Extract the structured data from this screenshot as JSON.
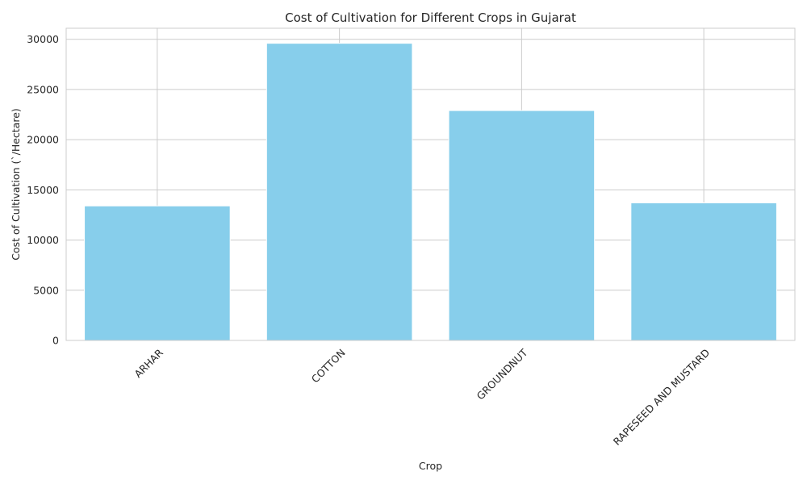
{
  "chart_data": {
    "type": "bar",
    "title": "Cost of Cultivation for Different Crops in Gujarat",
    "xlabel": "Crop",
    "ylabel": "Cost of Cultivation (`/Hectare)",
    "categories": [
      "ARHAR",
      "COTTON",
      "GROUNDNUT",
      "RAPESEED AND MUSTARD"
    ],
    "values": [
      13400,
      29600,
      22900,
      13700
    ],
    "ylim": [
      0,
      31100
    ],
    "yticks": [
      0,
      5000,
      10000,
      15000,
      20000,
      25000,
      30000
    ],
    "grid": true,
    "legend": "none",
    "bar_color": "#87CEEB",
    "grid_color": "#cccccc",
    "axes_edge_color": "#cccccc",
    "text_color": "#262626"
  }
}
